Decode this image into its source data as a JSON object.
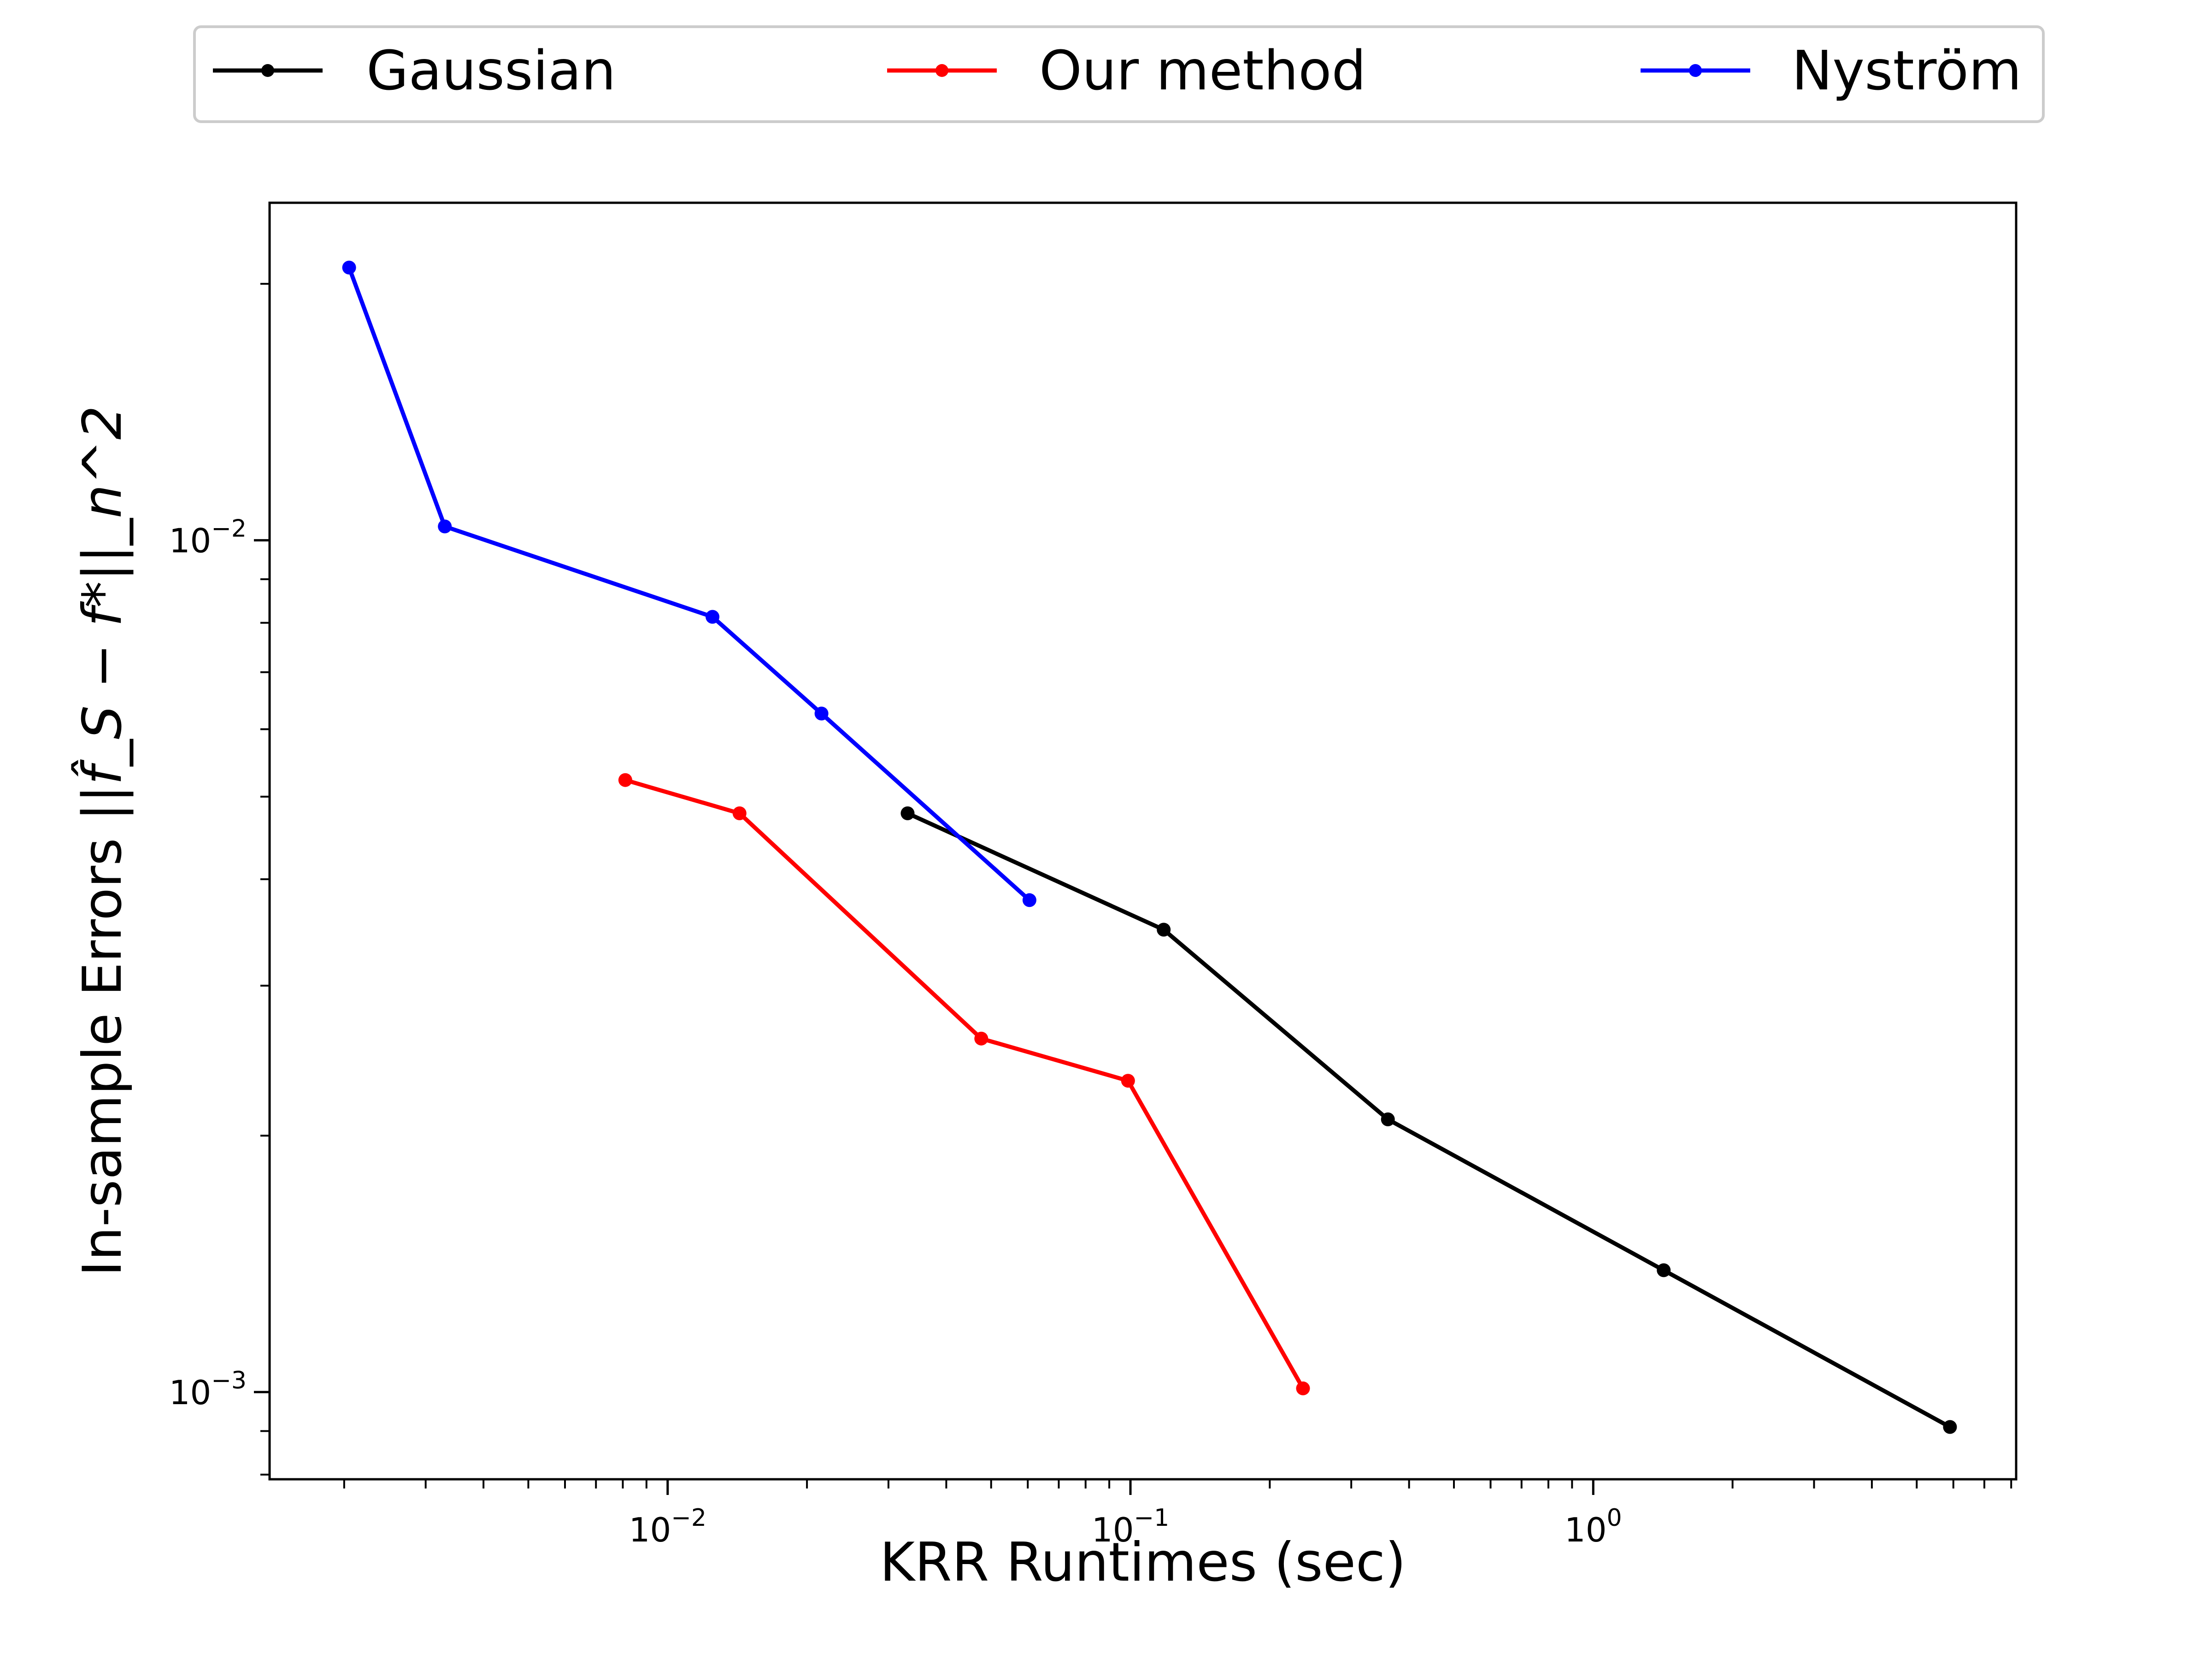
{
  "chart_data": {
    "type": "line",
    "title": "",
    "xlabel": "KRR Runtimes (sec)",
    "ylabel_prefix": "In-sample Errors ",
    "ylabel_math": "||f̂_S − f*||_n^2",
    "xscale": "log",
    "yscale": "log",
    "xlim": [
      0.00138,
      8.2
    ],
    "ylim": [
      0.00079,
      0.0249
    ],
    "x_ticks": [
      {
        "value": 0.01,
        "base": "10",
        "exp": "−2"
      },
      {
        "value": 0.1,
        "base": "10",
        "exp": "−1"
      },
      {
        "value": 1,
        "base": "10",
        "exp": "0"
      }
    ],
    "y_ticks": [
      {
        "value": 0.01,
        "base": "10",
        "exp": "−2"
      },
      {
        "value": 0.001,
        "base": "10",
        "exp": "−3"
      }
    ],
    "grid": false,
    "legend_position": "top, above plot",
    "series": [
      {
        "name": "Gaussian",
        "color": "#000000",
        "x": [
          0.033,
          0.118,
          0.36,
          1.42,
          5.9
        ],
        "y": [
          0.00478,
          0.00349,
          0.00209,
          0.00139,
          0.00091
        ]
      },
      {
        "name": "Our method",
        "color": "#ff0000",
        "x": [
          0.0081,
          0.0143,
          0.0476,
          0.0988,
          0.236
        ],
        "y": [
          0.00523,
          0.00478,
          0.0026,
          0.00232,
          0.00101
        ]
      },
      {
        "name": "Nyström",
        "color": "#0000ff",
        "x": [
          0.00205,
          0.0033,
          0.0125,
          0.0215,
          0.0605
        ],
        "y": [
          0.0209,
          0.01038,
          0.00813,
          0.00626,
          0.00378
        ]
      }
    ]
  }
}
